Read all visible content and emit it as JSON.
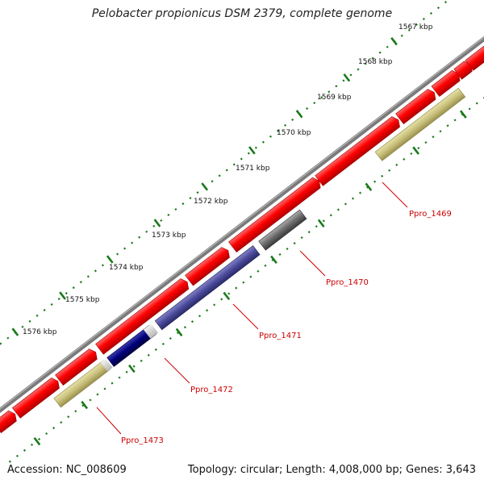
{
  "title": "Pelobacter propionicus DSM 2379, complete genome",
  "footer": {
    "accession": "Accession: NC_008609",
    "summary": "Topology: circular; Length: 4,008,000 bp; Genes: 3,643"
  },
  "scale_labels": [
    "1567 kbp",
    "1568 kbp",
    "1569 kbp",
    "1570 kbp",
    "1571 kbp",
    "1572 kbp",
    "1573 kbp",
    "1574 kbp",
    "1575 kbp",
    "1576 kbp"
  ],
  "gene_labels": [
    "Ppro_1469",
    "Ppro_1470",
    "Ppro_1471",
    "Ppro_1472",
    "Ppro_1473"
  ],
  "colors": {
    "backbone": "#808080",
    "cds": "#ff0000",
    "label": "#cc0000",
    "tick": "#1a7a1a",
    "olive": "#c8c07a",
    "navy_purple": "#4a4a9a",
    "dark_gray": "#6a6a6a",
    "navy": "#00007a",
    "lime": "#99ff33",
    "dark_olive": "#5a8a1a"
  }
}
